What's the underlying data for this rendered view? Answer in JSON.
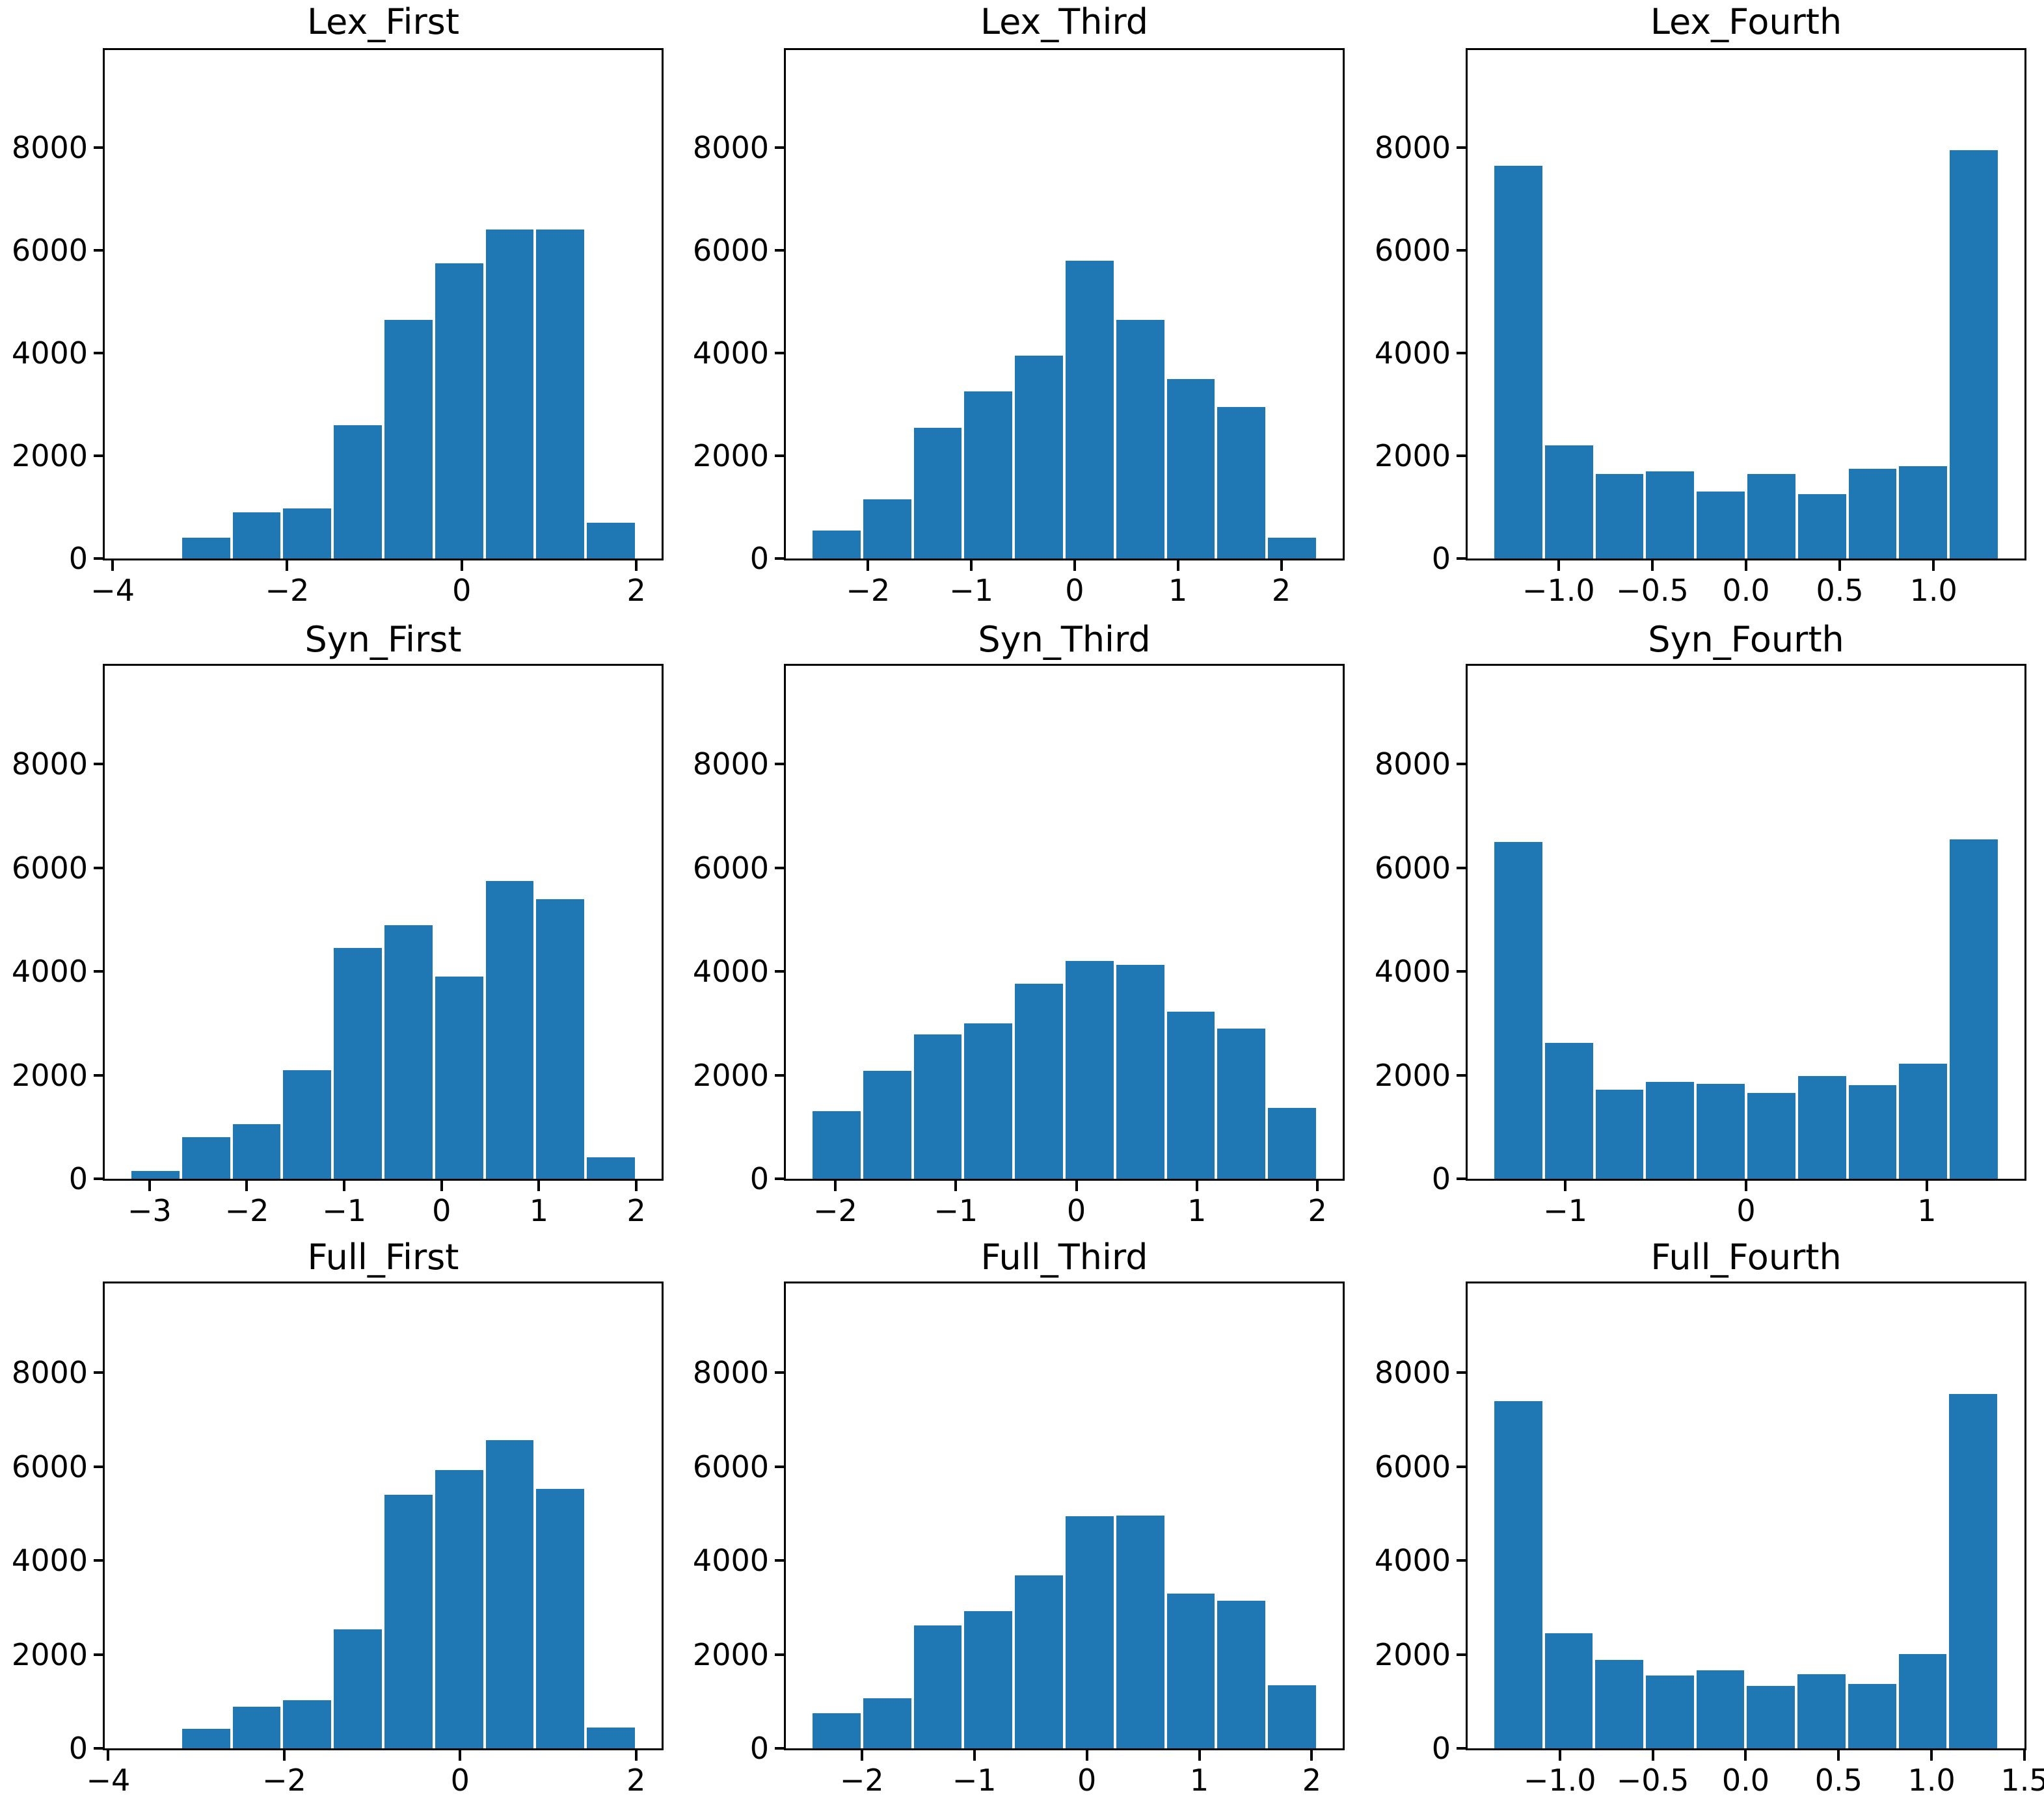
{
  "figure": {
    "background_color": "#ffffff",
    "bar_color": "#1f77b4",
    "axis_color": "#000000",
    "text_color": "#000000"
  },
  "chart_data": [
    {
      "type": "bar",
      "subtype": "histogram",
      "title": "Lex_First",
      "row": 0,
      "col": 0,
      "ylim": [
        0,
        9900
      ],
      "yticks": [
        0,
        2000,
        4000,
        6000,
        8000
      ],
      "xlim": [
        -4.09,
        2.29
      ],
      "xticks": [
        -4,
        -2,
        0,
        2
      ],
      "xtick_labels": [
        "−4",
        "−2",
        "0",
        "2"
      ],
      "bin_start": -3.8,
      "bin_width": 0.58,
      "counts": [
        0,
        400,
        900,
        980,
        2600,
        4650,
        5750,
        6400,
        6400,
        700
      ]
    },
    {
      "type": "bar",
      "subtype": "histogram",
      "title": "Lex_Third",
      "row": 0,
      "col": 1,
      "ylim": [
        0,
        9900
      ],
      "yticks": [
        0,
        2000,
        4000,
        6000,
        8000
      ],
      "xlim": [
        -2.795,
        2.595
      ],
      "xticks": [
        -2,
        -1,
        0,
        1,
        2
      ],
      "xtick_labels": [
        "−2",
        "−1",
        "0",
        "1",
        "2"
      ],
      "bin_start": -2.55,
      "bin_width": 0.49,
      "counts": [
        550,
        1150,
        2550,
        3250,
        3950,
        5800,
        4650,
        3500,
        2950,
        400
      ]
    },
    {
      "type": "bar",
      "subtype": "histogram",
      "title": "Lex_Fourth",
      "row": 0,
      "col": 2,
      "ylim": [
        0,
        9900
      ],
      "yticks": [
        0,
        2000,
        4000,
        6000,
        8000
      ],
      "xlim": [
        -1.485,
        1.485
      ],
      "xticks": [
        -1.0,
        -0.5,
        0.0,
        0.5,
        1.0
      ],
      "xtick_labels": [
        "−1.0",
        "−0.5",
        "0.0",
        "0.5",
        "1.0"
      ],
      "bin_start": -1.35,
      "bin_width": 0.27,
      "counts": [
        7650,
        2200,
        1650,
        1700,
        1300,
        1650,
        1250,
        1750,
        1800,
        7950
      ]
    },
    {
      "type": "bar",
      "subtype": "histogram",
      "title": "Syn_First",
      "row": 1,
      "col": 0,
      "ylim": [
        0,
        9900
      ],
      "yticks": [
        0,
        2000,
        4000,
        6000,
        8000
      ],
      "xlim": [
        -3.46,
        2.26
      ],
      "xticks": [
        -3,
        -2,
        -1,
        0,
        1,
        2
      ],
      "xtick_labels": [
        "−3",
        "−2",
        "−1",
        "0",
        "1",
        "2"
      ],
      "bin_start": -3.2,
      "bin_width": 0.52,
      "counts": [
        150,
        800,
        1050,
        2100,
        4450,
        4900,
        3900,
        5750,
        5400,
        420
      ]
    },
    {
      "type": "bar",
      "subtype": "histogram",
      "title": "Syn_Third",
      "row": 1,
      "col": 1,
      "ylim": [
        0,
        9900
      ],
      "yticks": [
        0,
        2000,
        4000,
        6000,
        8000
      ],
      "xlim": [
        -2.41,
        2.21
      ],
      "xticks": [
        -2,
        -1,
        0,
        1,
        2
      ],
      "xtick_labels": [
        "−2",
        "−1",
        "0",
        "1",
        "2"
      ],
      "bin_start": -2.2,
      "bin_width": 0.42,
      "counts": [
        1300,
        2080,
        2780,
        3000,
        3760,
        4200,
        4130,
        3220,
        2900,
        1370
      ]
    },
    {
      "type": "bar",
      "subtype": "histogram",
      "title": "Syn_Fourth",
      "row": 1,
      "col": 2,
      "ylim": [
        0,
        9900
      ],
      "yticks": [
        0,
        2000,
        4000,
        6000,
        8000
      ],
      "xlim": [
        -1.54,
        1.54
      ],
      "xticks": [
        -1,
        0,
        1
      ],
      "xtick_labels": [
        "−1",
        "0",
        "1"
      ],
      "bin_start": -1.4,
      "bin_width": 0.28,
      "counts": [
        6500,
        2620,
        1720,
        1870,
        1830,
        1660,
        1980,
        1810,
        2220,
        6550
      ]
    },
    {
      "type": "bar",
      "subtype": "histogram",
      "title": "Full_First",
      "row": 2,
      "col": 0,
      "ylim": [
        0,
        9900
      ],
      "yticks": [
        0,
        2000,
        4000,
        6000,
        8000
      ],
      "xlim": [
        -4.04,
        2.29
      ],
      "xticks": [
        -4,
        -2,
        0,
        2
      ],
      "xtick_labels": [
        "−4",
        "−2",
        "0",
        "2"
      ],
      "bin_start": -3.75,
      "bin_width": 0.575,
      "counts": [
        0,
        420,
        880,
        1020,
        2530,
        5400,
        5920,
        6570,
        5530,
        450
      ]
    },
    {
      "type": "bar",
      "subtype": "histogram",
      "title": "Full_Third",
      "row": 2,
      "col": 1,
      "ylim": [
        0,
        9900
      ],
      "yticks": [
        0,
        2000,
        4000,
        6000,
        8000
      ],
      "xlim": [
        -2.675,
        2.275
      ],
      "xticks": [
        -2,
        -1,
        0,
        1,
        2
      ],
      "xtick_labels": [
        "−2",
        "−1",
        "0",
        "1",
        "2"
      ],
      "bin_start": -2.45,
      "bin_width": 0.45,
      "counts": [
        750,
        1060,
        2620,
        2920,
        3680,
        4940,
        4960,
        3300,
        3140,
        1350
      ]
    },
    {
      "type": "bar",
      "subtype": "histogram",
      "title": "Full_Fourth",
      "row": 2,
      "col": 2,
      "ylim": [
        0,
        9900
      ],
      "yticks": [
        0,
        2000,
        4000,
        6000,
        8000
      ],
      "xlim": [
        -1.496,
        1.5
      ],
      "xticks": [
        -1.0,
        -0.5,
        0.0,
        0.5,
        1.0,
        1.5
      ],
      "xtick_labels": [
        "−1.0",
        "−0.5",
        "0.0",
        "0.5",
        "1.0",
        "1.5"
      ],
      "bin_start": -1.36,
      "bin_width": 0.272,
      "counts": [
        7400,
        2450,
        1890,
        1550,
        1660,
        1330,
        1580,
        1370,
        2010,
        7550
      ]
    }
  ]
}
